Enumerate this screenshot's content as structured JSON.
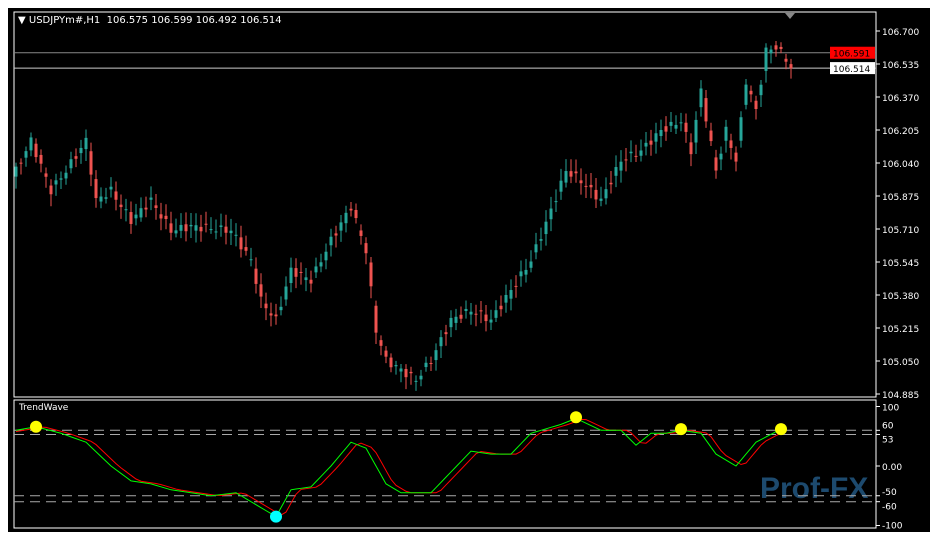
{
  "header": {
    "symbol": "USDJPYm#,H1",
    "ohlc": "106.575 106.599 106.492 106.514"
  },
  "price_axis": {
    "ticks": [
      "106.700",
      "106.535",
      "106.370",
      "106.205",
      "106.040",
      "105.875",
      "105.710",
      "105.545",
      "105.380",
      "105.215",
      "105.050",
      "104.885"
    ],
    "ask_label": "106.591",
    "bid_label": "106.514",
    "ask_color": "#ff0000"
  },
  "indicator": {
    "name": "TrendWave",
    "ticks": [
      "100",
      "60",
      "53",
      "0.00",
      "-50",
      "-60",
      "-100"
    ],
    "levels": [
      60,
      53,
      -50,
      -60
    ]
  },
  "colors": {
    "bull": "#26a69a",
    "bear": "#ef5350",
    "green": "#00ff00",
    "red": "#ff0000",
    "signal_top": "#ffff00",
    "signal_bottom": "#00ffff"
  },
  "watermark": "Prof-FX",
  "chart_data": {
    "type": "candlestick",
    "price_path": [
      [
        0,
        106.0
      ],
      [
        3,
        106.15
      ],
      [
        7,
        105.9
      ],
      [
        10,
        106.0
      ],
      [
        14,
        106.15
      ],
      [
        16,
        105.85
      ],
      [
        19,
        105.9
      ],
      [
        23,
        105.75
      ],
      [
        27,
        105.85
      ],
      [
        31,
        105.7
      ],
      [
        35,
        105.72
      ],
      [
        43,
        105.7
      ],
      [
        47,
        105.55
      ],
      [
        49,
        105.35
      ],
      [
        52,
        105.25
      ],
      [
        55,
        105.5
      ],
      [
        59,
        105.45
      ],
      [
        63,
        105.65
      ],
      [
        67,
        105.82
      ],
      [
        70,
        105.6
      ],
      [
        72,
        105.2
      ],
      [
        74,
        105.05
      ],
      [
        77,
        105.0
      ],
      [
        80,
        104.95
      ],
      [
        83,
        105.05
      ],
      [
        87,
        105.25
      ],
      [
        91,
        105.3
      ],
      [
        95,
        105.25
      ],
      [
        99,
        105.4
      ],
      [
        103,
        105.55
      ],
      [
        107,
        105.8
      ],
      [
        110,
        106.0
      ],
      [
        113,
        105.95
      ],
      [
        117,
        105.85
      ],
      [
        121,
        106.05
      ],
      [
        125,
        106.1
      ],
      [
        129,
        106.2
      ],
      [
        133,
        106.25
      ],
      [
        135,
        106.1
      ],
      [
        137,
        106.4
      ],
      [
        140,
        106.0
      ],
      [
        142,
        106.2
      ],
      [
        144,
        106.05
      ],
      [
        146,
        106.45
      ],
      [
        148,
        106.3
      ],
      [
        150,
        106.6
      ],
      [
        152,
        106.62
      ],
      [
        154,
        106.56
      ],
      [
        155,
        106.514
      ]
    ],
    "indicator_path": [
      [
        0,
        60
      ],
      [
        4,
        66
      ],
      [
        9,
        55
      ],
      [
        14,
        40
      ],
      [
        19,
        0
      ],
      [
        23,
        -25
      ],
      [
        27,
        -30
      ],
      [
        31,
        -40
      ],
      [
        35,
        -45
      ],
      [
        39,
        -50
      ],
      [
        44,
        -45
      ],
      [
        48,
        -65
      ],
      [
        52,
        -85
      ],
      [
        55,
        -40
      ],
      [
        59,
        -35
      ],
      [
        63,
        0
      ],
      [
        67,
        40
      ],
      [
        70,
        30
      ],
      [
        74,
        -30
      ],
      [
        77,
        -45
      ],
      [
        83,
        -45
      ],
      [
        87,
        -10
      ],
      [
        91,
        25
      ],
      [
        95,
        20
      ],
      [
        99,
        20
      ],
      [
        103,
        55
      ],
      [
        109,
        70
      ],
      [
        112,
        80
      ],
      [
        117,
        60
      ],
      [
        121,
        60
      ],
      [
        124,
        35
      ],
      [
        127,
        55
      ],
      [
        130,
        55
      ],
      [
        133,
        60
      ],
      [
        137,
        55
      ],
      [
        140,
        20
      ],
      [
        144,
        0
      ],
      [
        148,
        40
      ],
      [
        153,
        62
      ]
    ],
    "signals": [
      {
        "bar": 4,
        "value": 66,
        "type": "top"
      },
      {
        "bar": 52,
        "value": -85,
        "type": "bottom"
      },
      {
        "bar": 112,
        "value": 82,
        "type": "top"
      },
      {
        "bar": 133,
        "value": 62,
        "type": "top"
      },
      {
        "bar": 153,
        "value": 62,
        "type": "top"
      }
    ],
    "price_range": [
      104.885,
      106.7
    ],
    "indicator_range": [
      -100,
      100
    ]
  }
}
